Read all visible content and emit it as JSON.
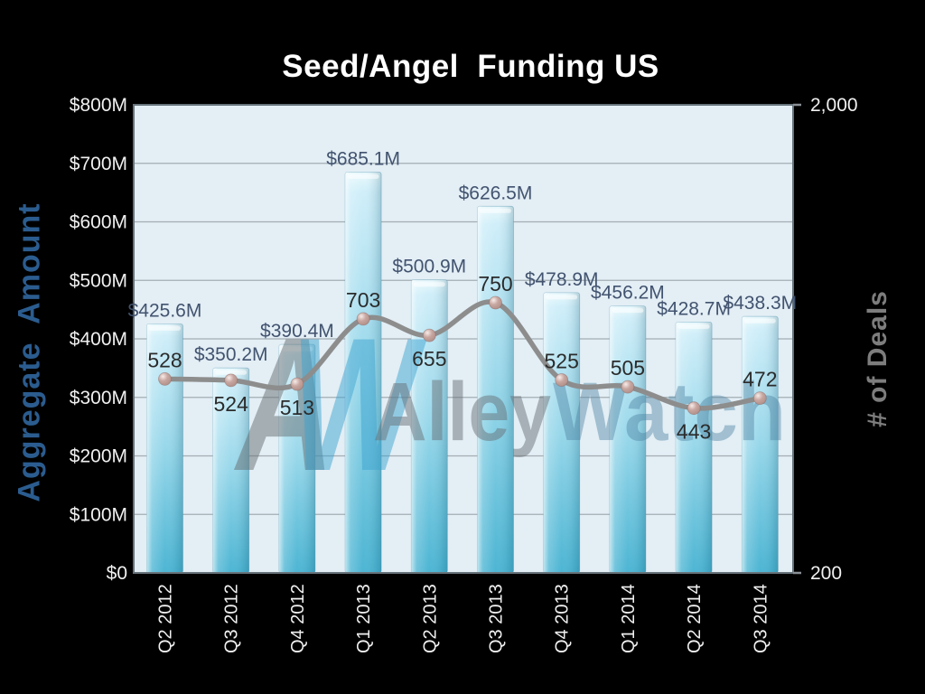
{
  "slide": {
    "title": "Seed/Angel  Funding US"
  },
  "chart_data": {
    "type": "bar",
    "title": "Seed/Angel  Funding US",
    "categories": [
      "Q2 2012",
      "Q3 2012",
      "Q4 2012",
      "Q1 2013",
      "Q2 2013",
      "Q3 2013",
      "Q4 2013",
      "Q1 2014",
      "Q2 2014",
      "Q3 2014"
    ],
    "series": [
      {
        "name": "Aggregate Amount",
        "type": "bar",
        "axis": "left",
        "unit": "$M",
        "values": [
          425.6,
          350.2,
          390.4,
          685.1,
          500.9,
          626.5,
          478.9,
          456.2,
          428.7,
          438.3
        ],
        "labels": [
          "$425.6M",
          "$350.2M",
          "$390.4M",
          "$685.1M",
          "$500.9M",
          "$626.5M",
          "$478.9M",
          "$456.2M",
          "$428.7M",
          "$438.3M"
        ]
      },
      {
        "name": "# of Deals",
        "type": "line",
        "axis": "right",
        "values": [
          528,
          524,
          513,
          703,
          655,
          750,
          525,
          505,
          443,
          472
        ],
        "label_positions": [
          "above",
          "below",
          "below",
          "above",
          "below",
          "above",
          "above",
          "above",
          "below",
          "above"
        ]
      }
    ],
    "left_axis": {
      "label": "Aggregate  Amount",
      "ticks": [
        "$800M",
        "$700M",
        "$600M",
        "$500M",
        "$400M",
        "$300M",
        "$200M",
        "$100M",
        "$0"
      ],
      "range": [
        0,
        800
      ]
    },
    "right_axis": {
      "label": "# of Deals",
      "ticks": [
        "2,000",
        "200"
      ]
    },
    "grid": "horizontal",
    "legend": "none",
    "watermark": {
      "logo_a": "A",
      "logo_w": "W",
      "text_gray": "Alley",
      "text_blue": "Watch"
    },
    "colors": {
      "background": "#000000",
      "plot_bg": "#e3eef5",
      "gridline": "#a3adb3",
      "plot_border": "#67737a",
      "bar_top": "#cfeef9",
      "bar_mid": "#97d7ea",
      "bar_bottom": "#4cb5d3",
      "line": "#8d8d8d",
      "marker": "#c8a7a1",
      "amount_label": "#42536f",
      "deals_label": "#2b2b2b",
      "tick_label": "#f0f0f0",
      "left_title": "#2b5c8f",
      "right_title": "#7d7d7d",
      "watermark_gray": "#666d72",
      "watermark_blue": "#3da4cf"
    }
  }
}
